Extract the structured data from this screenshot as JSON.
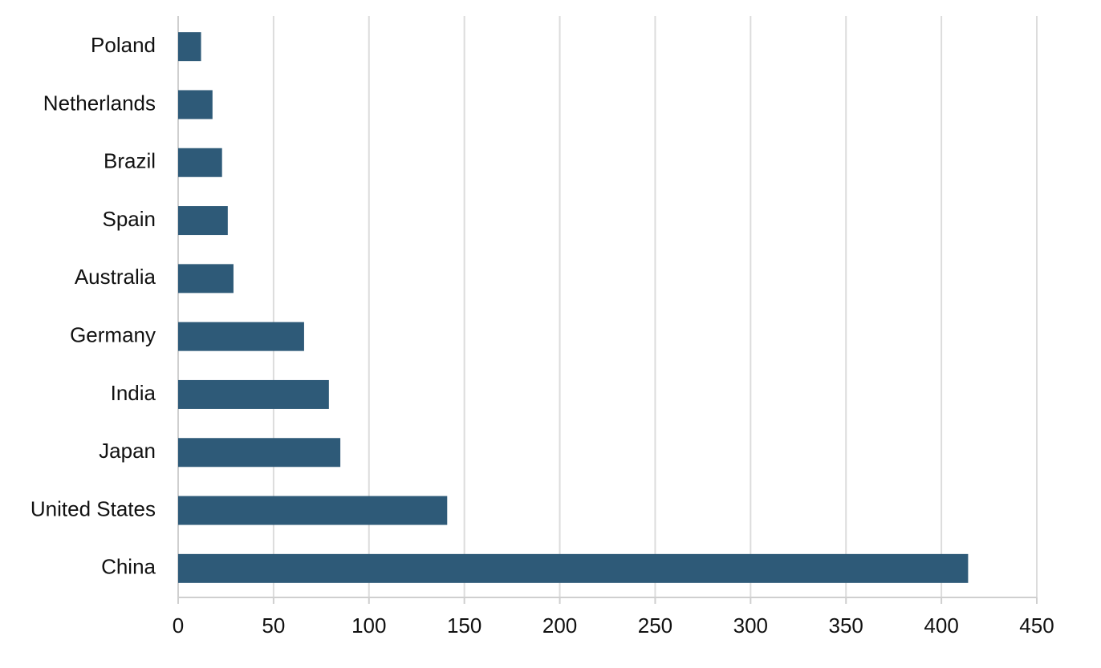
{
  "chart_data": {
    "type": "bar",
    "orientation": "horizontal",
    "categories": [
      "Poland",
      "Netherlands",
      "Brazil",
      "Spain",
      "Australia",
      "Germany",
      "India",
      "Japan",
      "United States",
      "China"
    ],
    "values": [
      12,
      18,
      23,
      26,
      29,
      66,
      79,
      85,
      141,
      414
    ],
    "color": "#2e5a78",
    "xlim": [
      0,
      450
    ],
    "xticks": [
      0,
      50,
      100,
      150,
      200,
      250,
      300,
      350,
      400,
      450
    ],
    "grid": true
  }
}
